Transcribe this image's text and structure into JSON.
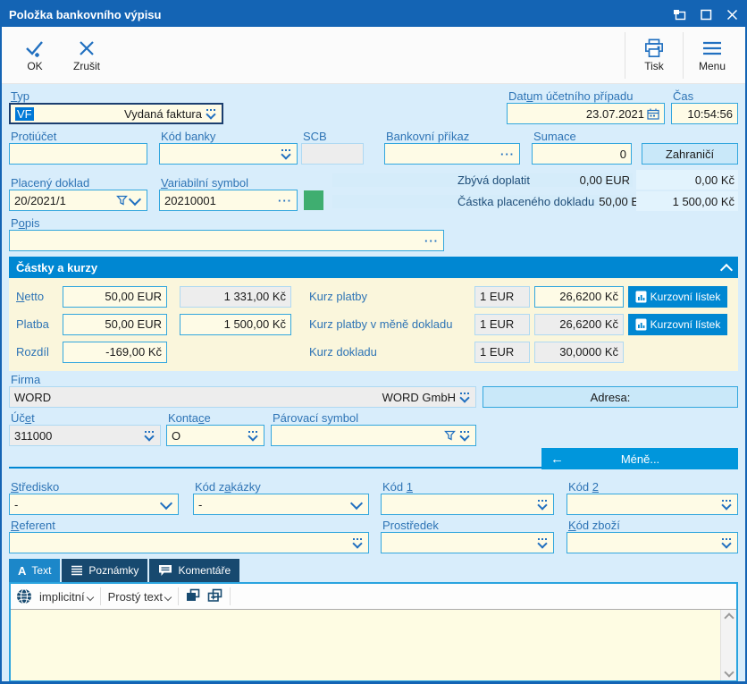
{
  "window": {
    "title": "Položka bankovního výpisu"
  },
  "toolbar": {
    "ok": "OK",
    "cancel": "Zrušit",
    "print": "Tisk",
    "menu": "Menu"
  },
  "colors": {
    "titlebar": "#1464B4",
    "section_header": "#0087D2",
    "body_bg": "#D8EDFB",
    "field_bg": "#FEFBE6",
    "disabled_bg": "#EDEDED",
    "accent_border": "#33A7DE",
    "selection": "#0078D7",
    "status_green": "#3FAE70",
    "button_blue": "#0096DC"
  },
  "header_fields": {
    "typ": {
      "label": "Typ",
      "code": "VF",
      "value": "Vydaná faktura"
    },
    "datum": {
      "label": "Datum účetního případu",
      "value": "23.07.2021"
    },
    "cas": {
      "label": "Čas",
      "value": "10:54:56"
    }
  },
  "row2": {
    "protiucet": {
      "label": "Protiúčet",
      "value": ""
    },
    "kod_banky": {
      "label": "Kód banky",
      "value": ""
    },
    "scb": {
      "label": "SCB",
      "value": ""
    },
    "bankovni_prikaz": {
      "label": "Bankovní příkaz",
      "value": ""
    },
    "sumace": {
      "label": "Sumace",
      "value": "0"
    },
    "zahranici_button": "Zahraničí"
  },
  "row3": {
    "placeny_doklad": {
      "label": "Placený doklad",
      "value": "20/2021/1"
    },
    "variabilni_symbol": {
      "label": "Variabilní symbol",
      "value": "20210001"
    },
    "zbyva_doplatit": {
      "label": "Zbývá doplatit",
      "eur": "0,00 EUR",
      "kc": "0,00 Kč"
    },
    "castka_placeneho_dokladu": {
      "label": "Částka placeného dokladu",
      "eur": "50,00 E...",
      "kc": "1 500,00 Kč"
    }
  },
  "popis": {
    "label": "Popis",
    "value": ""
  },
  "castky_a_kurzy": {
    "title": "Částky a kurzy",
    "netto": {
      "label": "Netto",
      "eur": "50,00 EUR",
      "kc": "1 331,00 Kč"
    },
    "platba": {
      "label": "Platba",
      "eur": "50,00 EUR",
      "kc": "1 500,00 Kč"
    },
    "rozdil": {
      "label": "Rozdíl",
      "kc": "-169,00 Kč"
    },
    "kurz_platby": {
      "label": "Kurz platby",
      "unit": "1 EUR",
      "rate": "26,6200 Kč",
      "button": "Kurzovní lístek"
    },
    "kurz_platby_v_mene": {
      "label": "Kurz platby v měně dokladu",
      "unit": "1 EUR",
      "rate": "26,6200 Kč",
      "button": "Kurzovní lístek"
    },
    "kurz_dokladu": {
      "label": "Kurz dokladu",
      "unit": "1 EUR",
      "rate": "30,0000 Kč"
    }
  },
  "firma": {
    "label": "Firma",
    "code": "WORD",
    "name": "WORD GmbH",
    "adresa_label": "Adresa:"
  },
  "uctovani": {
    "ucet": {
      "label": "Účet",
      "value": "311000"
    },
    "kontace": {
      "label": "Kontace",
      "value": "O"
    },
    "parovaci_symbol": {
      "label": "Párovací symbol",
      "value": ""
    }
  },
  "mene_button": {
    "label": "Méně...",
    "arrow": "←"
  },
  "detail_fields": {
    "stredisko": {
      "label": "Středisko",
      "value": "-"
    },
    "kod_zakazky": {
      "label": "Kód zakázky",
      "value": "-"
    },
    "kod1": {
      "label": "Kód 1",
      "value": ""
    },
    "kod2": {
      "label": "Kód 2",
      "value": ""
    },
    "referent": {
      "label": "Referent",
      "value": ""
    },
    "prostredek": {
      "label": "Prostředek",
      "value": ""
    },
    "kod_zbozi": {
      "label": "Kód zboží",
      "value": ""
    }
  },
  "tabs": {
    "text": "Text",
    "poznamky": "Poznámky",
    "komentare": "Komentáře"
  },
  "editor": {
    "language": "implicitní",
    "format": "Prostý text",
    "content": ""
  }
}
